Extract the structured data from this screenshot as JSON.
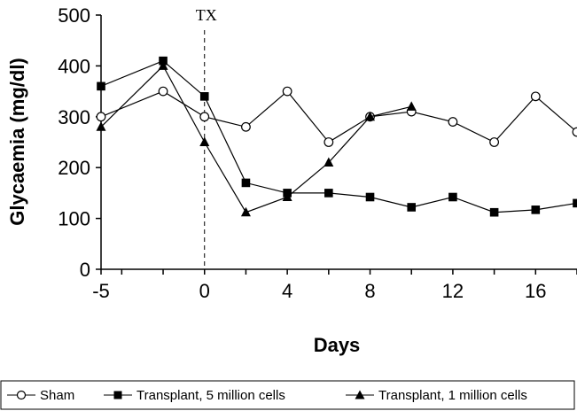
{
  "chart_data": {
    "type": "line",
    "xlabel": "Days",
    "ylabel": "Glycaemia (mg/dl)",
    "xlim": [
      -5,
      18
    ],
    "ylim": [
      0,
      500
    ],
    "xticks": [
      -5,
      0,
      4,
      8,
      12,
      16
    ],
    "yticks": [
      0,
      100,
      200,
      300,
      400,
      500
    ],
    "annotation": {
      "label": "TX",
      "x": 0
    },
    "legend_position": "bottom",
    "series": [
      {
        "name": "Sham",
        "marker": "open-circle",
        "color": "#000000",
        "x": [
          -5,
          -2,
          0,
          2,
          4,
          6,
          8,
          10,
          12,
          14,
          16,
          18
        ],
        "y": [
          300,
          350,
          300,
          280,
          350,
          250,
          300,
          310,
          290,
          250,
          340,
          270
        ]
      },
      {
        "name": "Transplant, 5 million cells",
        "marker": "filled-square",
        "color": "#000000",
        "x": [
          -5,
          -2,
          0,
          2,
          4,
          6,
          8,
          10,
          12,
          14,
          16,
          18
        ],
        "y": [
          360,
          410,
          340,
          170,
          150,
          150,
          142,
          122,
          142,
          112,
          117,
          130
        ]
      },
      {
        "name": "Transplant, 1 million cells",
        "marker": "filled-triangle",
        "color": "#000000",
        "x": [
          -5,
          -2,
          0,
          2,
          4,
          6,
          8,
          10
        ],
        "y": [
          280,
          400,
          250,
          112,
          142,
          210,
          300,
          320
        ]
      }
    ]
  }
}
